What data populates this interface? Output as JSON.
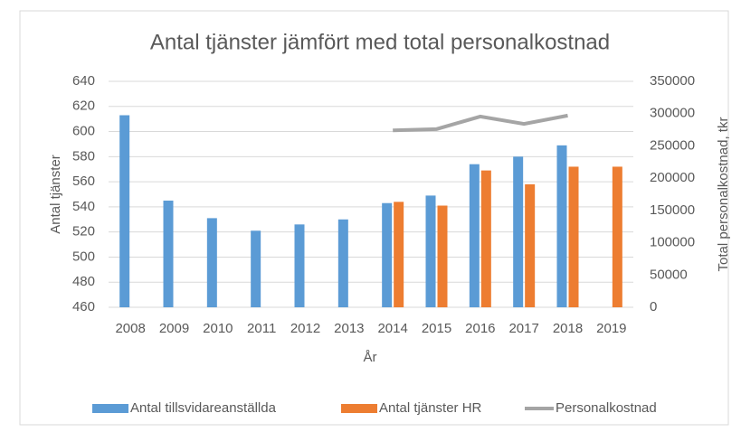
{
  "chart_data": {
    "type": "bar",
    "title": "Antal tjänster jämfört med total personalkostnad",
    "x_label": "År",
    "y_label": "Antal tjänster",
    "y2_label": "Total personalkostnad, tkr",
    "categories": [
      "2008",
      "2009",
      "2010",
      "2011",
      "2012",
      "2013",
      "2014",
      "2015",
      "2016",
      "2017",
      "2018",
      "2019"
    ],
    "series": [
      {
        "name": "Antal tillsvidareanställda",
        "color": "#5b9bd5",
        "type": "bar",
        "values": [
          613,
          545,
          531,
          521,
          526,
          530,
          543,
          549,
          574,
          580,
          589,
          null
        ]
      },
      {
        "name": "Antal tjänster HR",
        "color": "#ed7d31",
        "type": "bar",
        "values": [
          null,
          null,
          null,
          null,
          null,
          null,
          544,
          541,
          569,
          558,
          572,
          572
        ]
      },
      {
        "name": "Personalkostnad",
        "color": "#a5a5a5",
        "type": "line",
        "axis": "y2",
        "values": [
          null,
          null,
          null,
          null,
          null,
          null,
          274000,
          276000,
          295500,
          284000,
          297000,
          null
        ]
      }
    ],
    "ylim": [
      460,
      640
    ],
    "yticks": [
      460,
      480,
      500,
      520,
      540,
      560,
      580,
      600,
      620,
      640
    ],
    "y2lim": [
      0,
      350000
    ],
    "y2ticks": [
      0,
      50000,
      100000,
      150000,
      200000,
      250000,
      300000,
      350000
    ],
    "grid": true,
    "legend": "bottom"
  }
}
